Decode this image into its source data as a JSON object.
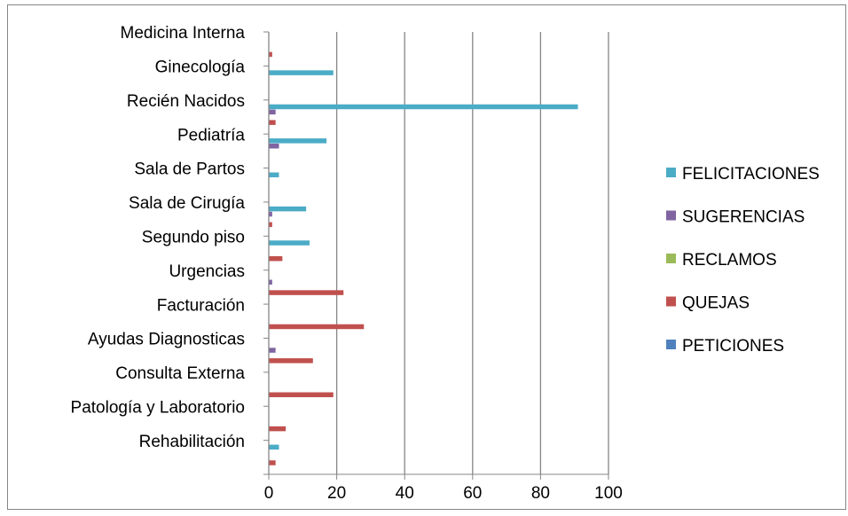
{
  "chart_data": {
    "type": "bar",
    "orientation": "horizontal",
    "categories": [
      "Medicina Interna",
      "Ginecología",
      "Recién Nacidos",
      "Pediatría",
      "Sala de Partos",
      "Sala de Cirugía",
      "Segundo piso",
      "Urgencias",
      "Facturación",
      "Ayudas Diagnosticas",
      "Consulta Externa",
      "Patología y Laboratorio",
      "Rehabilitación"
    ],
    "series": [
      {
        "name": "FELICITACIONES",
        "color": "#4BACC6",
        "values": [
          0,
          19,
          91,
          17,
          3,
          11,
          12,
          0,
          0,
          0,
          0,
          0,
          3
        ]
      },
      {
        "name": "SUGERENCIAS",
        "color": "#8064A2",
        "values": [
          0,
          0,
          2,
          3,
          0,
          1,
          0,
          1,
          0,
          2,
          0,
          0,
          0
        ]
      },
      {
        "name": "RECLAMOS",
        "color": "#9BBB59",
        "values": [
          0,
          0,
          0,
          0,
          0,
          0,
          0,
          0,
          0,
          0,
          0,
          0,
          0
        ]
      },
      {
        "name": "QUEJAS",
        "color": "#C0504D",
        "values": [
          1,
          0,
          2,
          0,
          0,
          1,
          4,
          22,
          28,
          13,
          19,
          5,
          2
        ]
      },
      {
        "name": "PETICIONES",
        "color": "#4F81BD",
        "values": [
          0,
          0,
          0,
          0,
          0,
          0,
          0,
          0,
          0,
          0,
          0,
          0,
          0
        ]
      }
    ],
    "xlim": [
      0,
      100
    ],
    "xticks": [
      "0",
      "20",
      "40",
      "60",
      "80",
      "100"
    ],
    "grid": "vertical",
    "legend_position": "right",
    "title": "",
    "xlabel": "",
    "ylabel": ""
  }
}
